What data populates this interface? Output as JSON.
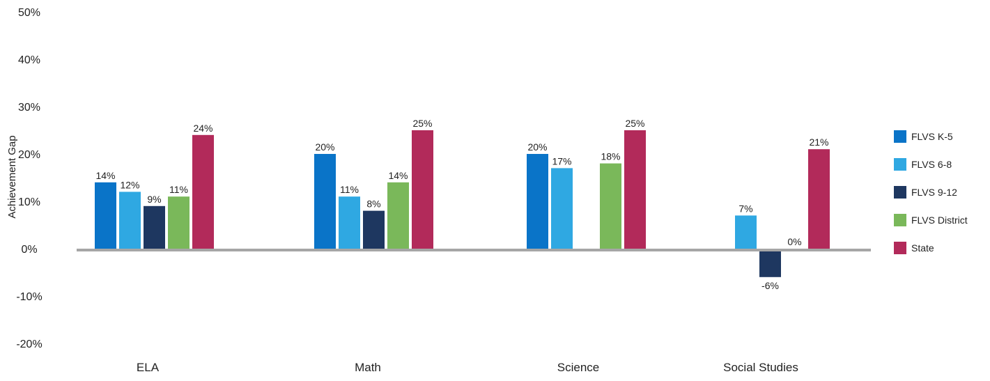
{
  "chart_data": {
    "type": "bar",
    "title": "",
    "xlabel": "",
    "ylabel": "Achievement Gap",
    "ylim": [
      -20,
      50
    ],
    "yticks": [
      50,
      40,
      30,
      20,
      10,
      0,
      -10,
      -20
    ],
    "ytick_labels": [
      "50%",
      "40%",
      "30%",
      "20%",
      "10%",
      "0%",
      "-10%",
      "-20%"
    ],
    "grid": false,
    "legend_position": "right",
    "categories": [
      "ELA",
      "Math",
      "Science",
      "Social Studies"
    ],
    "series": [
      {
        "name": "FLVS K-5",
        "color": "#0A74C8",
        "values": [
          14,
          20,
          20,
          null
        ],
        "labels": [
          "14%",
          "20%",
          "20%",
          ""
        ]
      },
      {
        "name": "FLVS 6-8",
        "color": "#2FA8E2",
        "values": [
          12,
          11,
          17,
          7
        ],
        "labels": [
          "12%",
          "11%",
          "17%",
          "7%"
        ]
      },
      {
        "name": "FLVS 9-12",
        "color": "#1E3760",
        "values": [
          9,
          8,
          null,
          -6
        ],
        "labels": [
          "9%",
          "8%",
          "",
          "-6%"
        ]
      },
      {
        "name": "FLVS District",
        "color": "#7AB85A",
        "values": [
          11,
          14,
          18,
          0
        ],
        "labels": [
          "11%",
          "14%",
          "18%",
          "0%"
        ]
      },
      {
        "name": "State",
        "color": "#B22A5A",
        "values": [
          24,
          25,
          25,
          21
        ],
        "labels": [
          "24%",
          "25%",
          "25%",
          "21%"
        ]
      }
    ],
    "zero_line_color": "#A6A6A6"
  }
}
